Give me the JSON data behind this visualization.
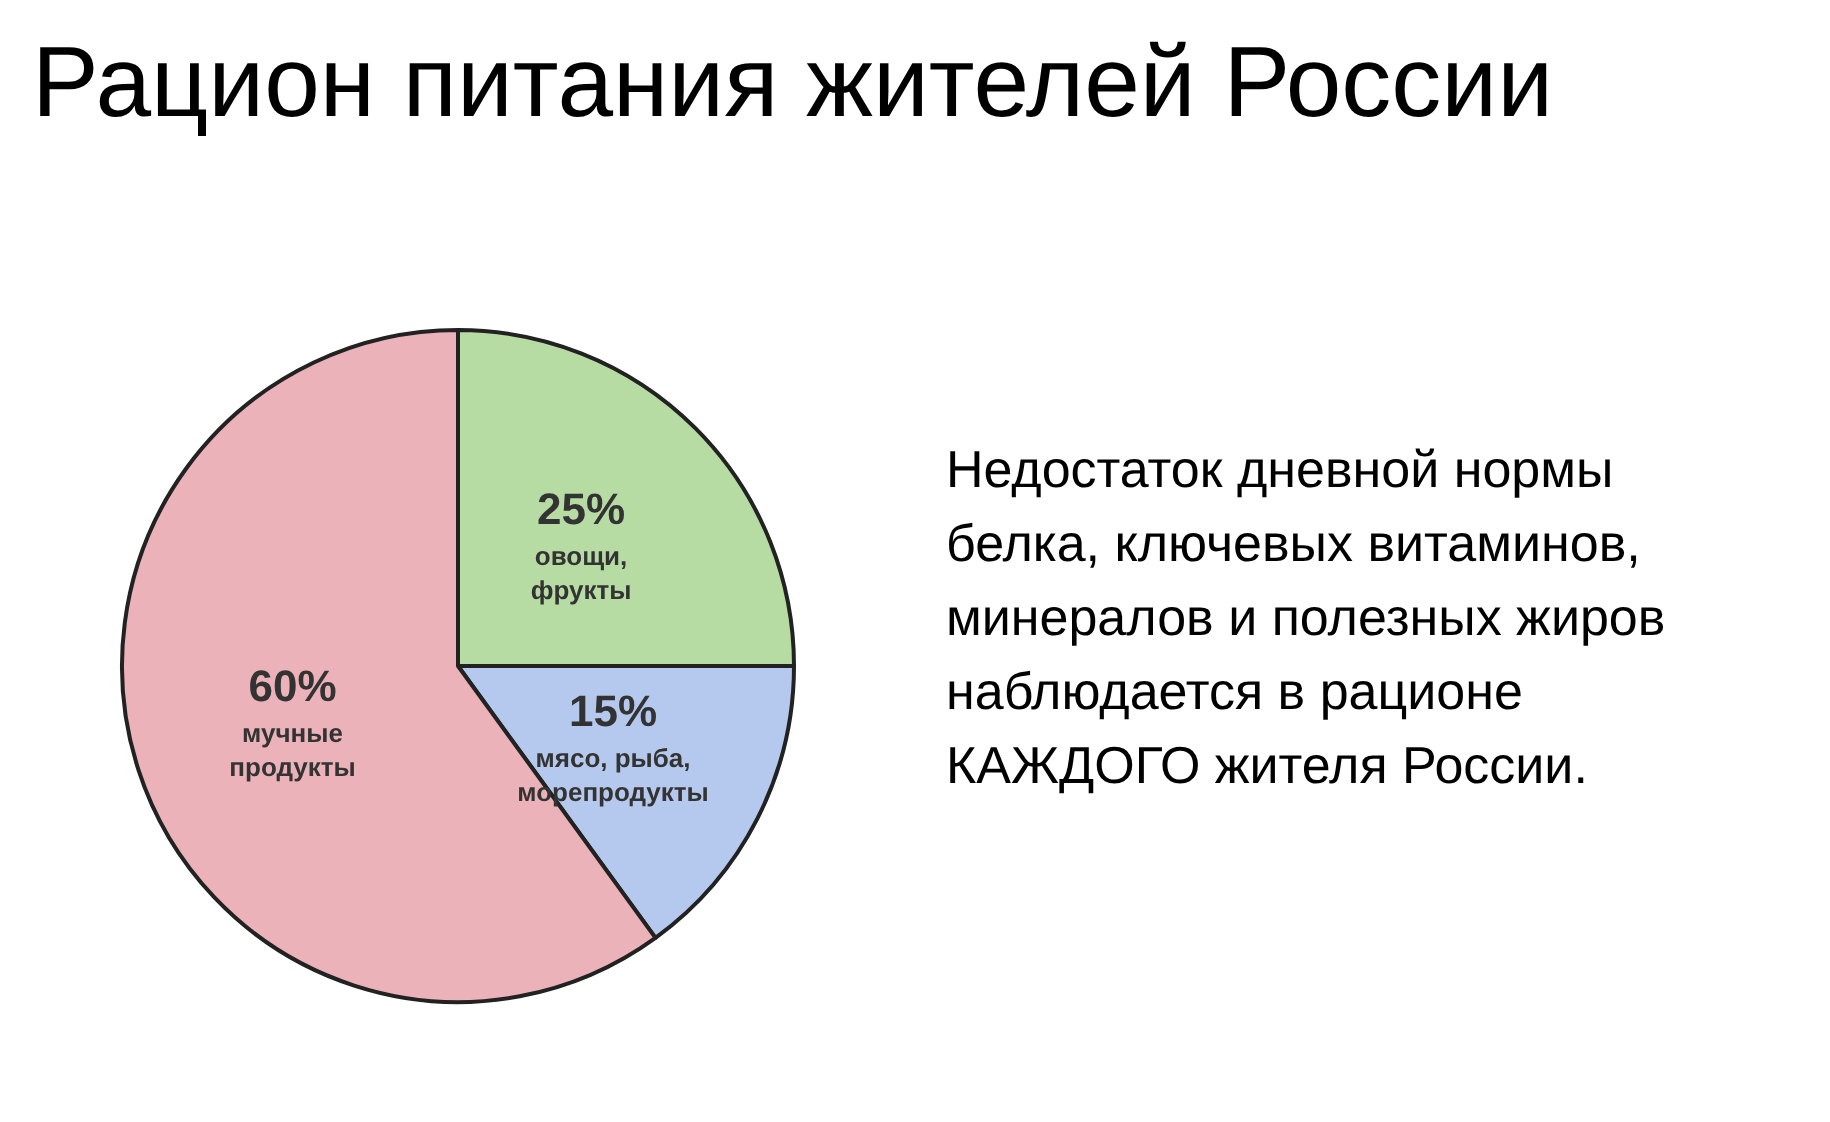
{
  "chart_data": {
    "type": "pie",
    "title": "Рацион питания жителей России",
    "categories": [
      "овощи, фрукты",
      "мясо, рыба, морепродукты",
      "мучные продукты"
    ],
    "values": [
      25,
      15,
      60
    ],
    "value_labels": [
      "25%",
      "15%",
      "60%"
    ],
    "colors": [
      "#b7dca3",
      "#b5c9ee",
      "#ecb2b9"
    ],
    "annotations": [
      "Недостаток дневной нормы белка, ключевых витаминов, минералов и полезных жиров наблюдается в рационе КАЖДОГО жителя России."
    ]
  }
}
